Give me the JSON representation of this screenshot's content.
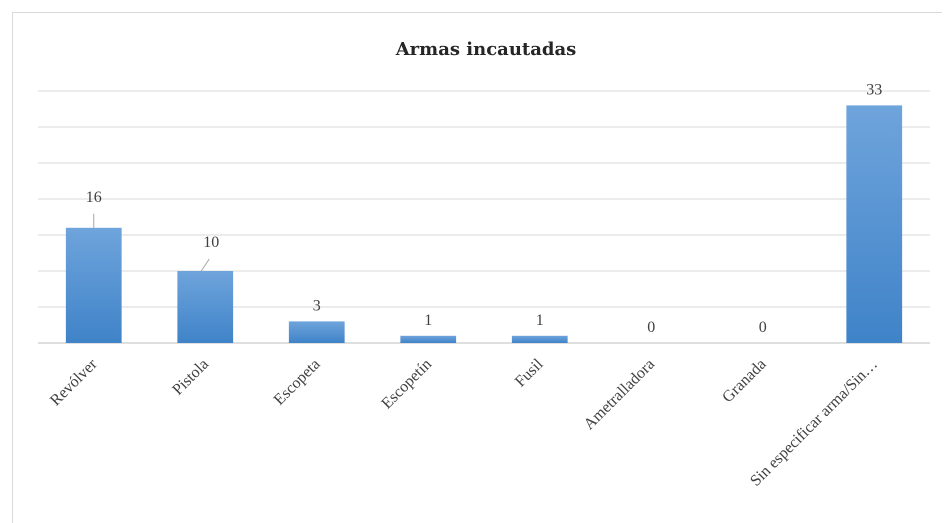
{
  "chart_data": {
    "type": "bar",
    "title": "Armas incautadas",
    "categories": [
      "Revólver",
      "Pistola",
      "Escopeta",
      "Escopetín",
      "Fusil",
      "Ametralladora",
      "Granada",
      "Sin especificar arma/Sin…"
    ],
    "values": [
      16,
      10,
      3,
      1,
      1,
      0,
      0,
      33
    ],
    "ylim": [
      0,
      35
    ],
    "grid": true,
    "legend": "none",
    "colors": {
      "bar_top": "#6fa4dc",
      "bar_bottom": "#3f83c8",
      "grid": "#d9d9d9",
      "axis": "#bfbfbf"
    }
  }
}
